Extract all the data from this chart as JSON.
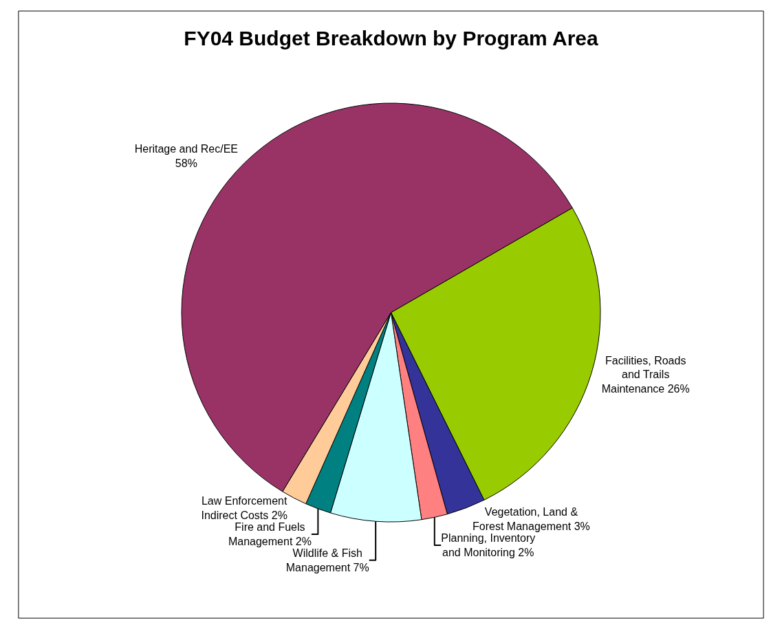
{
  "chart_data": {
    "type": "pie",
    "title": "FY04 Budget Breakdown by Program Area",
    "categories": [
      "Facilities, Roads and Trails Maintenance",
      "Vegetation, Land & Forest Management",
      "Planning, Inventory and Monitoring",
      "Wildlife & Fish Management",
      "Fire and Fuels Management",
      "Law Enforcement Indirect Costs",
      "Heritage and Rec/EE"
    ],
    "values": [
      26,
      3,
      2,
      7,
      2,
      2,
      58
    ],
    "colors": [
      "#99cc00",
      "#333399",
      "#ff8080",
      "#ccffff",
      "#008080",
      "#ffcc99",
      "#993366"
    ],
    "value_labels": [
      "26%",
      "3%",
      "2%",
      "7%",
      "2%",
      "2%",
      "58%"
    ],
    "legend": false
  }
}
